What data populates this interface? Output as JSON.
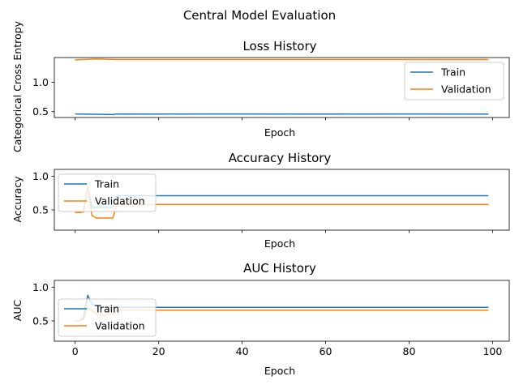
{
  "figure": {
    "suptitle": "Central Model Evaluation"
  },
  "colors": {
    "train": "#1f77b4",
    "validation": "#ff7f0e"
  },
  "chart_data": [
    {
      "type": "line",
      "title": "Loss History",
      "xlabel": "Epoch",
      "ylabel": "Categorical Cross Entropy",
      "xlim": [
        -5,
        104
      ],
      "ylim": [
        0.4,
        1.42
      ],
      "xticks": [
        0,
        20,
        40,
        60,
        80,
        100
      ],
      "show_xtick_labels": false,
      "yticks": [
        0.5,
        1.0
      ],
      "ytick_labels": [
        "0.5",
        "1.0"
      ],
      "legend": "upper right",
      "series": [
        {
          "name": "Train",
          "color": "#1f77b4",
          "points": [
            [
              0,
              0.46
            ],
            [
              5,
              0.455
            ],
            [
              9,
              0.45
            ],
            [
              10,
              0.46
            ],
            [
              20,
              0.458
            ],
            [
              40,
              0.46
            ],
            [
              60,
              0.458
            ],
            [
              80,
              0.46
            ],
            [
              99,
              0.458
            ]
          ]
        },
        {
          "name": "Validation",
          "color": "#ff7f0e",
          "points": [
            [
              0,
              1.38
            ],
            [
              5,
              1.395
            ],
            [
              10,
              1.385
            ],
            [
              20,
              1.385
            ],
            [
              40,
              1.385
            ],
            [
              60,
              1.385
            ],
            [
              80,
              1.385
            ],
            [
              99,
              1.385
            ]
          ]
        }
      ]
    },
    {
      "type": "line",
      "title": "Accuracy History",
      "xlabel": "Epoch",
      "ylabel": "Accuracy",
      "xlim": [
        -5,
        104
      ],
      "ylim": [
        0.2,
        1.1
      ],
      "xticks": [
        0,
        20,
        40,
        60,
        80,
        100
      ],
      "show_xtick_labels": false,
      "yticks": [
        0.5,
        1.0
      ],
      "ytick_labels": [
        "0.5",
        "1.0"
      ],
      "legend": "upper left",
      "series": [
        {
          "name": "Train",
          "color": "#1f77b4",
          "points": [
            [
              0,
              0.46
            ],
            [
              1,
              0.46
            ],
            [
              2,
              0.47
            ],
            [
              3,
              0.85
            ],
            [
              4,
              0.54
            ],
            [
              5,
              0.54
            ],
            [
              9,
              0.54
            ],
            [
              10,
              0.71
            ],
            [
              11,
              0.71
            ],
            [
              99,
              0.71
            ]
          ]
        },
        {
          "name": "Validation",
          "color": "#ff7f0e",
          "points": [
            [
              0,
              0.46
            ],
            [
              1,
              0.46
            ],
            [
              2,
              0.47
            ],
            [
              3,
              0.85
            ],
            [
              4,
              0.42
            ],
            [
              5,
              0.38
            ],
            [
              6,
              0.38
            ],
            [
              9,
              0.38
            ],
            [
              10,
              0.58
            ],
            [
              11,
              0.58
            ],
            [
              99,
              0.58
            ]
          ]
        }
      ]
    },
    {
      "type": "line",
      "title": "AUC History",
      "xlabel": "Epoch",
      "ylabel": "AUC",
      "xlim": [
        -5,
        104
      ],
      "ylim": [
        0.2,
        1.1
      ],
      "xticks": [
        0,
        20,
        40,
        60,
        80,
        100
      ],
      "xtick_labels": [
        "0",
        "20",
        "40",
        "60",
        "80",
        "100"
      ],
      "show_xtick_labels": true,
      "yticks": [
        0.5,
        1.0
      ],
      "ytick_labels": [
        "0.5",
        "1.0"
      ],
      "legend": "lower left",
      "series": [
        {
          "name": "Train",
          "color": "#1f77b4",
          "points": [
            [
              0,
              0.5
            ],
            [
              1,
              0.5
            ],
            [
              2,
              0.55
            ],
            [
              3,
              0.88
            ],
            [
              4,
              0.75
            ],
            [
              5,
              0.72
            ],
            [
              9,
              0.7
            ],
            [
              10,
              0.7
            ],
            [
              99,
              0.7
            ]
          ]
        },
        {
          "name": "Validation",
          "color": "#ff7f0e",
          "points": [
            [
              0,
              0.5
            ],
            [
              1,
              0.5
            ],
            [
              2,
              0.52
            ],
            [
              3,
              0.7
            ],
            [
              4,
              0.66
            ],
            [
              5,
              0.6
            ],
            [
              6,
              0.58
            ],
            [
              9,
              0.6
            ],
            [
              10,
              0.66
            ],
            [
              99,
              0.66
            ]
          ]
        }
      ]
    }
  ]
}
